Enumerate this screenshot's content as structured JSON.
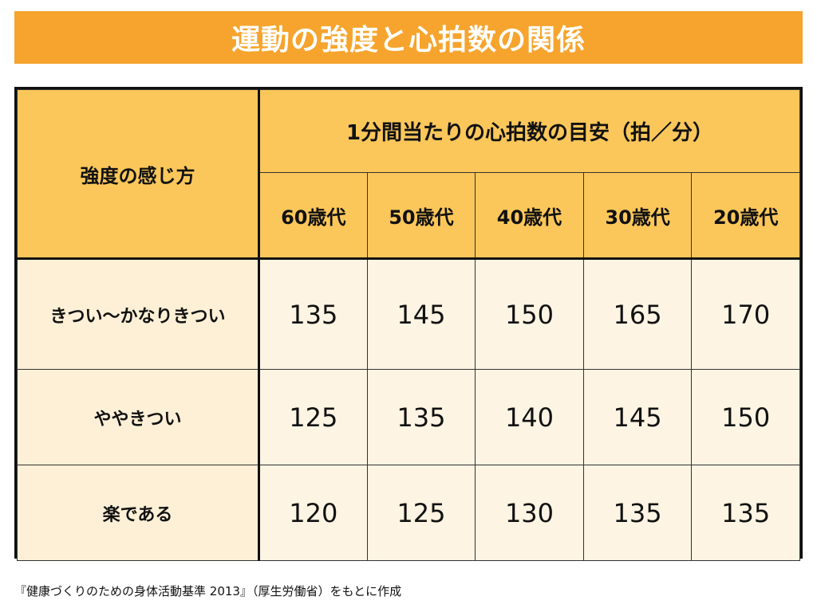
{
  "title": "運動の強度と心拍数の関係",
  "table": {
    "corner_label": "強度の感じ方",
    "group_header": "1分間当たりの心拍数の目安（拍／分）",
    "columns": [
      "60歳代",
      "50歳代",
      "40歳代",
      "30歳代",
      "20歳代"
    ],
    "rows": [
      {
        "label": "きつい〜かなりきつい",
        "values": [
          "135",
          "145",
          "150",
          "165",
          "170"
        ]
      },
      {
        "label": "ややきつい",
        "values": [
          "125",
          "135",
          "140",
          "145",
          "150"
        ]
      },
      {
        "label": "楽である",
        "values": [
          "120",
          "125",
          "130",
          "135",
          "135"
        ]
      }
    ]
  },
  "footnote": "『健康づくりのための身体活動基準 2013』（厚生労働省）をもとに作成",
  "colors": {
    "title_bar": "#f6a42d",
    "header_bg": "#fbc75a",
    "body_bg": "#fdf4e3"
  }
}
